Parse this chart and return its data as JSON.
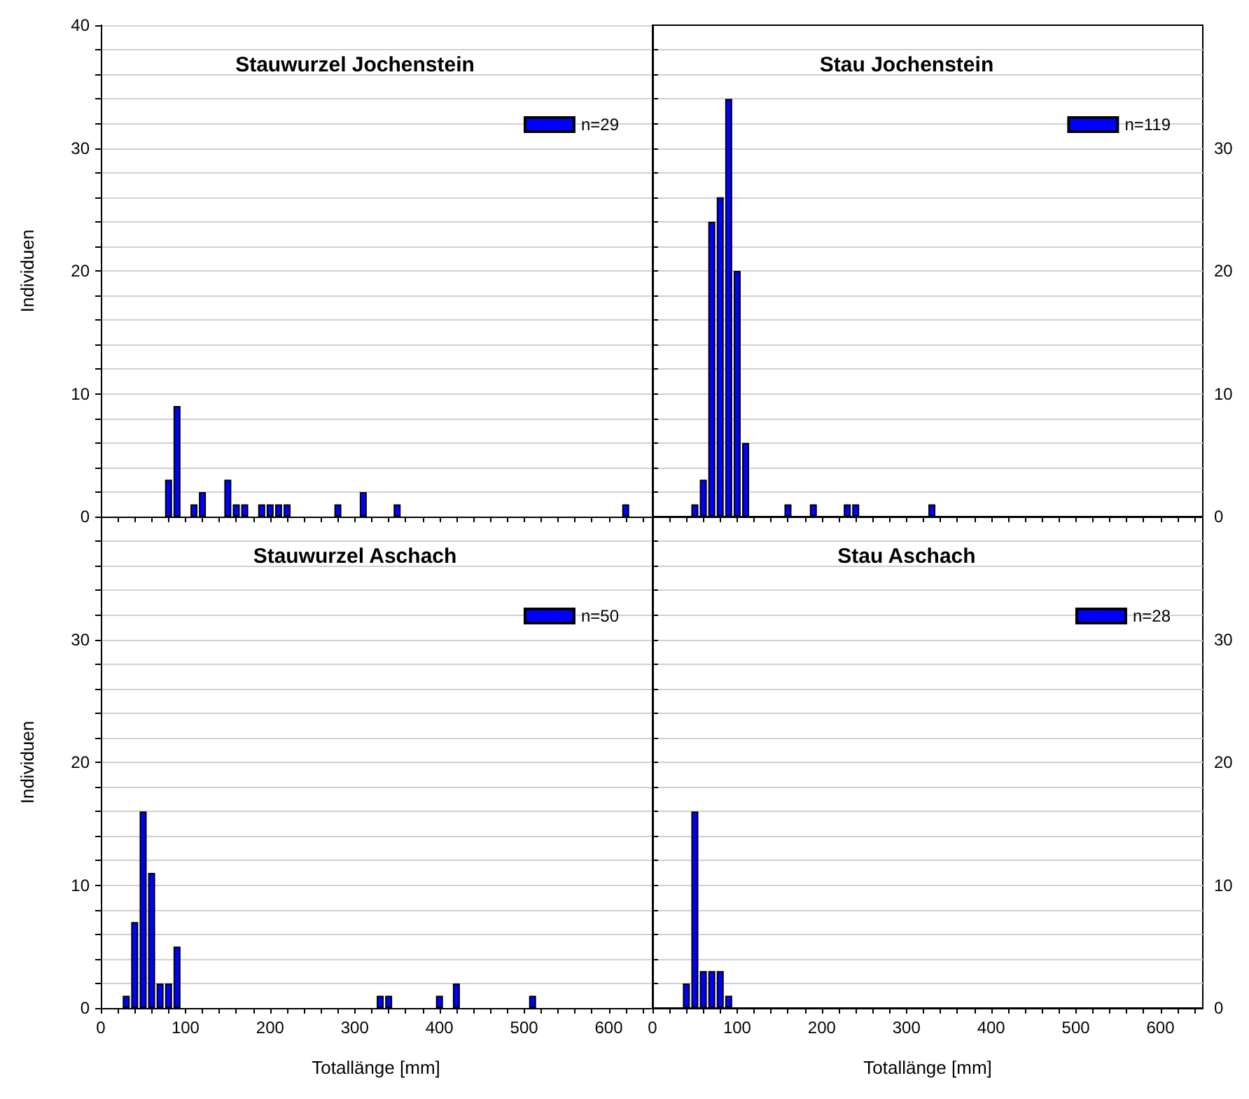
{
  "chart_data": [
    {
      "type": "bar",
      "title": "Stauwurzel Jochenstein",
      "ylabel": "Individuen",
      "tick_labels": "y",
      "legend": "top right",
      "grid": "y",
      "xlim": [
        0,
        650
      ],
      "xticks": [
        0,
        {
          "value": 20,
          "label": null
        },
        {
          "value": 40,
          "label": null
        },
        {
          "value": 60,
          "label": null
        },
        {
          "value": 80,
          "label": null
        },
        100,
        {
          "value": 120,
          "label": null
        },
        {
          "value": 140,
          "label": null
        },
        {
          "value": 160,
          "label": null
        },
        {
          "value": 180,
          "label": null
        },
        200,
        {
          "value": 220,
          "label": null
        },
        {
          "value": 240,
          "label": null
        },
        {
          "value": 260,
          "label": null
        },
        {
          "value": 280,
          "label": null
        },
        300,
        {
          "value": 320,
          "label": null
        },
        {
          "value": 340,
          "label": null
        },
        {
          "value": 360,
          "label": null
        },
        {
          "value": 380,
          "label": null
        },
        400,
        {
          "value": 420,
          "label": null
        },
        {
          "value": 440,
          "label": null
        },
        {
          "value": 460,
          "label": null
        },
        {
          "value": 480,
          "label": null
        },
        500,
        {
          "value": 520,
          "label": null
        },
        {
          "value": 540,
          "label": null
        },
        {
          "value": 560,
          "label": null
        },
        {
          "value": 580,
          "label": null
        },
        600,
        {
          "value": 620,
          "label": null
        },
        {
          "value": 640,
          "label": null
        }
      ],
      "ylim": [
        0,
        40
      ],
      "yticks": [
        0,
        {
          "value": 2,
          "label": null
        },
        {
          "value": 4,
          "label": null
        },
        {
          "value": 6,
          "label": null
        },
        {
          "value": 8,
          "label": null
        },
        10,
        {
          "value": 12,
          "label": null
        },
        {
          "value": 14,
          "label": null
        },
        {
          "value": 16,
          "label": null
        },
        {
          "value": 18,
          "label": null
        },
        20,
        {
          "value": 22,
          "label": null
        },
        {
          "value": 24,
          "label": null
        },
        {
          "value": 26,
          "label": null
        },
        {
          "value": 28,
          "label": null
        },
        30,
        {
          "value": 32,
          "label": null
        },
        {
          "value": 34,
          "label": null
        },
        {
          "value": 36,
          "label": null
        },
        {
          "value": 38,
          "label": null
        },
        40
      ],
      "series": [
        {
          "name": "n=29",
          "color": "#0000ff",
          "x": [
            80,
            90,
            110,
            120,
            150,
            160,
            170,
            190,
            200,
            210,
            220,
            280,
            310,
            350,
            620
          ],
          "values": [
            3,
            9,
            1,
            2,
            3,
            1,
            1,
            1,
            1,
            1,
            1,
            1,
            2,
            1,
            1
          ]
        }
      ]
    },
    {
      "type": "bar",
      "title": "Stau Jochenstein",
      "tick_labels": "y",
      "legend": "top right",
      "grid": "y",
      "xlim": [
        0,
        650
      ],
      "xticks": [
        0,
        {
          "value": 20,
          "label": null
        },
        {
          "value": 40,
          "label": null
        },
        {
          "value": 60,
          "label": null
        },
        {
          "value": 80,
          "label": null
        },
        100,
        {
          "value": 120,
          "label": null
        },
        {
          "value": 140,
          "label": null
        },
        {
          "value": 160,
          "label": null
        },
        {
          "value": 180,
          "label": null
        },
        200,
        {
          "value": 220,
          "label": null
        },
        {
          "value": 240,
          "label": null
        },
        {
          "value": 260,
          "label": null
        },
        {
          "value": 280,
          "label": null
        },
        300,
        {
          "value": 320,
          "label": null
        },
        {
          "value": 340,
          "label": null
        },
        {
          "value": 360,
          "label": null
        },
        {
          "value": 380,
          "label": null
        },
        400,
        {
          "value": 420,
          "label": null
        },
        {
          "value": 440,
          "label": null
        },
        {
          "value": 460,
          "label": null
        },
        {
          "value": 480,
          "label": null
        },
        500,
        {
          "value": 520,
          "label": null
        },
        {
          "value": 540,
          "label": null
        },
        {
          "value": 560,
          "label": null
        },
        {
          "value": 580,
          "label": null
        },
        600,
        {
          "value": 620,
          "label": null
        },
        {
          "value": 640,
          "label": null
        }
      ],
      "ylim": [
        0,
        40
      ],
      "yticks": [
        0,
        {
          "value": 2,
          "label": null
        },
        {
          "value": 4,
          "label": null
        },
        {
          "value": 6,
          "label": null
        },
        {
          "value": 8,
          "label": null
        },
        10,
        {
          "value": 12,
          "label": null
        },
        {
          "value": 14,
          "label": null
        },
        {
          "value": 16,
          "label": null
        },
        {
          "value": 18,
          "label": null
        },
        20,
        {
          "value": 22,
          "label": null
        },
        {
          "value": 24,
          "label": null
        },
        {
          "value": 26,
          "label": null
        },
        {
          "value": 28,
          "label": null
        },
        30,
        {
          "value": 32,
          "label": null
        },
        {
          "value": 34,
          "label": null
        },
        {
          "value": 36,
          "label": null
        },
        {
          "value": 38,
          "label": null
        }
      ],
      "series": [
        {
          "name": "n=119",
          "color": "#0000ff",
          "x": [
            50,
            60,
            70,
            80,
            90,
            100,
            110,
            160,
            190,
            230,
            240,
            330
          ],
          "values": [
            1,
            3,
            24,
            26,
            34,
            20,
            6,
            1,
            1,
            1,
            1,
            1
          ]
        }
      ]
    },
    {
      "type": "bar",
      "title": "Stauwurzel Aschach",
      "xlabel": "Totallänge [mm]",
      "ylabel": "Individuen",
      "legend": "top right",
      "grid": "y",
      "xlim": [
        0,
        650
      ],
      "xticks": [
        0,
        {
          "value": 20,
          "label": null
        },
        {
          "value": 40,
          "label": null
        },
        {
          "value": 60,
          "label": null
        },
        {
          "value": 80,
          "label": null
        },
        100,
        {
          "value": 120,
          "label": null
        },
        {
          "value": 140,
          "label": null
        },
        {
          "value": 160,
          "label": null
        },
        {
          "value": 180,
          "label": null
        },
        200,
        {
          "value": 220,
          "label": null
        },
        {
          "value": 240,
          "label": null
        },
        {
          "value": 260,
          "label": null
        },
        {
          "value": 280,
          "label": null
        },
        300,
        {
          "value": 320,
          "label": null
        },
        {
          "value": 340,
          "label": null
        },
        {
          "value": 360,
          "label": null
        },
        {
          "value": 380,
          "label": null
        },
        400,
        {
          "value": 420,
          "label": null
        },
        {
          "value": 440,
          "label": null
        },
        {
          "value": 460,
          "label": null
        },
        {
          "value": 480,
          "label": null
        },
        500,
        {
          "value": 520,
          "label": null
        },
        {
          "value": 540,
          "label": null
        },
        {
          "value": 560,
          "label": null
        },
        {
          "value": 580,
          "label": null
        },
        600,
        {
          "value": 620,
          "label": null
        },
        {
          "value": 640,
          "label": null
        }
      ],
      "ylim": [
        0,
        40
      ],
      "yticks": [
        0,
        {
          "value": 2,
          "label": null
        },
        {
          "value": 4,
          "label": null
        },
        {
          "value": 6,
          "label": null
        },
        {
          "value": 8,
          "label": null
        },
        10,
        {
          "value": 12,
          "label": null
        },
        {
          "value": 14,
          "label": null
        },
        {
          "value": 16,
          "label": null
        },
        {
          "value": 18,
          "label": null
        },
        20,
        {
          "value": 22,
          "label": null
        },
        {
          "value": 24,
          "label": null
        },
        {
          "value": 26,
          "label": null
        },
        {
          "value": 28,
          "label": null
        },
        30,
        {
          "value": 32,
          "label": null
        },
        {
          "value": 34,
          "label": null
        },
        {
          "value": 36,
          "label": null
        },
        {
          "value": 38,
          "label": null
        }
      ],
      "series": [
        {
          "name": "n=50",
          "color": "#0000ff",
          "x": [
            30,
            40,
            50,
            60,
            70,
            80,
            90,
            330,
            340,
            400,
            420,
            510
          ],
          "values": [
            1,
            7,
            16,
            11,
            2,
            2,
            5,
            1,
            1,
            1,
            2,
            1
          ]
        }
      ]
    },
    {
      "type": "bar",
      "title": "Stau Aschach",
      "xlabel": "Totallänge [mm]",
      "legend": "top right",
      "grid": "y",
      "xlim": [
        0,
        650
      ],
      "xticks": [
        0,
        {
          "value": 20,
          "label": null
        },
        {
          "value": 40,
          "label": null
        },
        {
          "value": 60,
          "label": null
        },
        {
          "value": 80,
          "label": null
        },
        100,
        {
          "value": 120,
          "label": null
        },
        {
          "value": 140,
          "label": null
        },
        {
          "value": 160,
          "label": null
        },
        {
          "value": 180,
          "label": null
        },
        200,
        {
          "value": 220,
          "label": null
        },
        {
          "value": 240,
          "label": null
        },
        {
          "value": 260,
          "label": null
        },
        {
          "value": 280,
          "label": null
        },
        300,
        {
          "value": 320,
          "label": null
        },
        {
          "value": 340,
          "label": null
        },
        {
          "value": 360,
          "label": null
        },
        {
          "value": 380,
          "label": null
        },
        400,
        {
          "value": 420,
          "label": null
        },
        {
          "value": 440,
          "label": null
        },
        {
          "value": 460,
          "label": null
        },
        {
          "value": 480,
          "label": null
        },
        500,
        {
          "value": 520,
          "label": null
        },
        {
          "value": 540,
          "label": null
        },
        {
          "value": 560,
          "label": null
        },
        {
          "value": 580,
          "label": null
        },
        600,
        {
          "value": 620,
          "label": null
        },
        {
          "value": 640,
          "label": null
        }
      ],
      "ylim": [
        0,
        40
      ],
      "yticks": [
        0,
        {
          "value": 2,
          "label": null
        },
        {
          "value": 4,
          "label": null
        },
        {
          "value": 6,
          "label": null
        },
        {
          "value": 8,
          "label": null
        },
        10,
        {
          "value": 12,
          "label": null
        },
        {
          "value": 14,
          "label": null
        },
        {
          "value": 16,
          "label": null
        },
        {
          "value": 18,
          "label": null
        },
        20,
        {
          "value": 22,
          "label": null
        },
        {
          "value": 24,
          "label": null
        },
        {
          "value": 26,
          "label": null
        },
        {
          "value": 28,
          "label": null
        },
        30,
        {
          "value": 32,
          "label": null
        },
        {
          "value": 34,
          "label": null
        },
        {
          "value": 36,
          "label": null
        },
        {
          "value": 38,
          "label": null
        }
      ],
      "series": [
        {
          "name": "n=28",
          "color": "#0000ff",
          "x": [
            40,
            50,
            60,
            70,
            80,
            90
          ],
          "values": [
            2,
            16,
            3,
            3,
            3,
            1
          ]
        }
      ]
    }
  ]
}
